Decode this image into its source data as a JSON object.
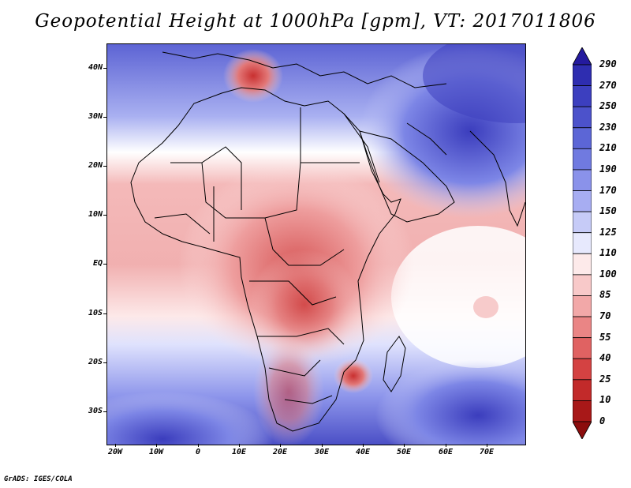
{
  "title": "Geopotential Height at 1000hPa [gpm], VT: 2017011806",
  "credit": "GrADS: IGES/COLA",
  "lat_labels": [
    "40N",
    "30N",
    "20N",
    "10N",
    "EQ",
    "10S",
    "20S",
    "30S"
  ],
  "lon_labels": [
    "20W",
    "10W",
    "0",
    "10E",
    "20E",
    "30E",
    "40E",
    "50E",
    "60E",
    "70E"
  ],
  "colorbar": {
    "levels": [
      "290",
      "270",
      "250",
      "230",
      "210",
      "190",
      "170",
      "150",
      "125",
      "110",
      "100",
      "85",
      "70",
      "55",
      "40",
      "25",
      "10",
      "0"
    ],
    "colors": [
      "#241a9e",
      "#2e2db0",
      "#3c3fbf",
      "#4c52cb",
      "#5c66d6",
      "#707ae0",
      "#8a92ea",
      "#a7adf2",
      "#c6cbf7",
      "#e7e9fd",
      "#fdeaea",
      "#f8c9c9",
      "#f2a8a8",
      "#ea8585",
      "#e06262",
      "#d44242",
      "#c22a2a",
      "#a81818",
      "#8c0d0d"
    ]
  },
  "colors": {
    "low": "#d94848",
    "high": "#2e2db0",
    "neutral": "#ffffff",
    "coast": "#000000"
  }
}
